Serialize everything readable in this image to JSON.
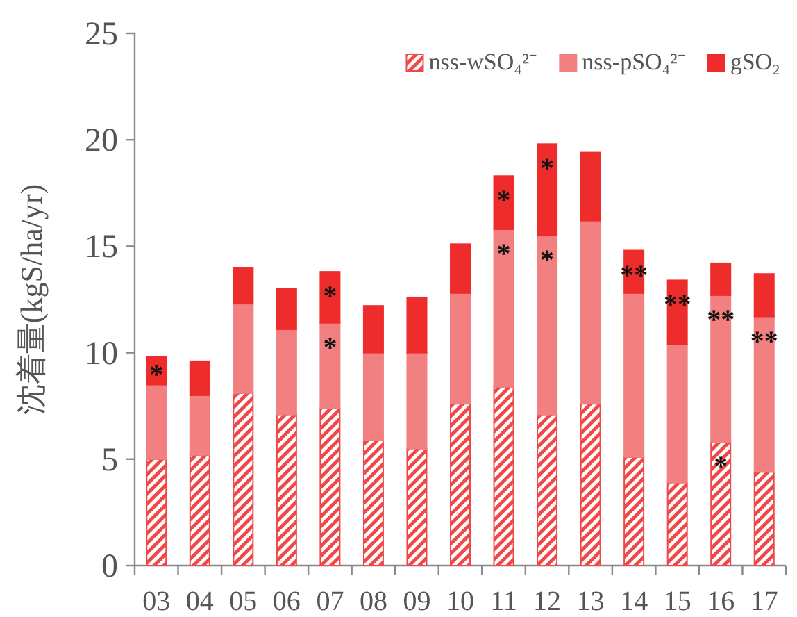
{
  "chart_data": {
    "type": "bar",
    "stacked": true,
    "ylabel": "沈着量(kgS/ha/yr)",
    "categories": [
      "03",
      "04",
      "05",
      "06",
      "07",
      "08",
      "09",
      "10",
      "11",
      "12",
      "13",
      "14",
      "15",
      "16",
      "17"
    ],
    "series": [
      {
        "name": "nss-wSO₄²⁻",
        "color": "#f04848",
        "values": [
          5.0,
          5.2,
          8.1,
          7.1,
          7.4,
          5.9,
          5.5,
          7.6,
          8.4,
          7.1,
          7.6,
          5.1,
          3.9,
          5.8,
          4.4
        ],
        "value_labels": [
          null,
          null,
          null,
          null,
          null,
          null,
          null,
          null,
          null,
          null,
          null,
          null,
          null,
          "*",
          null
        ]
      },
      {
        "name": "nss-pSO₄²⁻",
        "color": "#f28080",
        "values": [
          3.5,
          2.8,
          4.2,
          4.0,
          4.0,
          4.1,
          4.5,
          5.2,
          7.4,
          8.4,
          8.6,
          7.7,
          6.5,
          6.9,
          7.3
        ],
        "value_labels": [
          null,
          null,
          null,
          null,
          "*",
          null,
          null,
          null,
          "*",
          "*",
          null,
          null,
          null,
          "**",
          "**"
        ]
      },
      {
        "name": "gSO₂",
        "color": "#ee2c2c",
        "values": [
          1.3,
          1.6,
          1.7,
          1.9,
          2.4,
          2.2,
          2.6,
          2.3,
          2.5,
          4.3,
          3.2,
          2.0,
          3.0,
          1.5,
          2.0
        ],
        "value_labels": [
          "*",
          null,
          null,
          null,
          "*",
          null,
          null,
          null,
          "*",
          "*",
          null,
          "**",
          "**",
          null,
          null
        ]
      }
    ],
    "ylim": [
      0,
      25
    ],
    "yticks": [
      0,
      5,
      10,
      15,
      20,
      25
    ],
    "grid": false,
    "legend": "top right"
  }
}
